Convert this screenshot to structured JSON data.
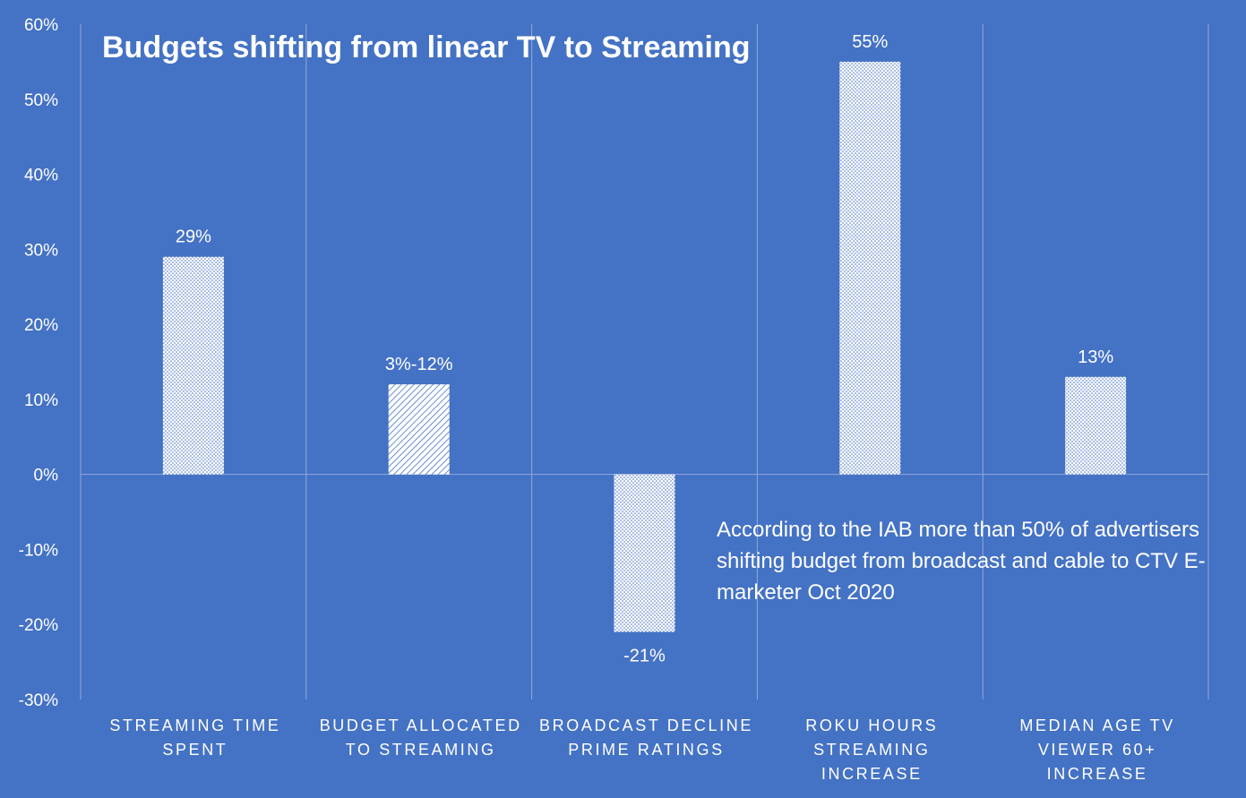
{
  "chart_data": {
    "type": "bar",
    "title": "Budgets shifting from linear TV  to Streaming",
    "categories": [
      "STREAMING TIME SPENT",
      "BUDGET ALLOCATED TO STREAMING",
      "BROADCAST DECLINE PRIME RATINGS",
      "ROKU HOURS STREAMING INCREASE",
      "MEDIAN AGE TV VIEWER 60+ INCREASE"
    ],
    "values": [
      29,
      12,
      -21,
      55,
      13
    ],
    "data_labels": [
      "29%",
      "3%-12%",
      "-21%",
      "55%",
      "13%"
    ],
    "ylim": [
      -30,
      60
    ],
    "yticks": [
      -30,
      -20,
      -10,
      0,
      10,
      20,
      30,
      40,
      50,
      60
    ],
    "ytick_labels": [
      "-30%",
      "-20%",
      "-10%",
      "0%",
      "10%",
      "20%",
      "30%",
      "40%",
      "50%",
      "60%"
    ],
    "xlabel": "",
    "ylabel": "",
    "grid": "vertical",
    "annotation": "According to the IAB more than 50% of advertisers shifting budget from broadcast and cable to CTV E-marketer Oct 2020"
  },
  "colors": {
    "background": "#4472c4",
    "bar": "#ffffff",
    "gridline": "#8faadc",
    "text": "#ffffff"
  }
}
